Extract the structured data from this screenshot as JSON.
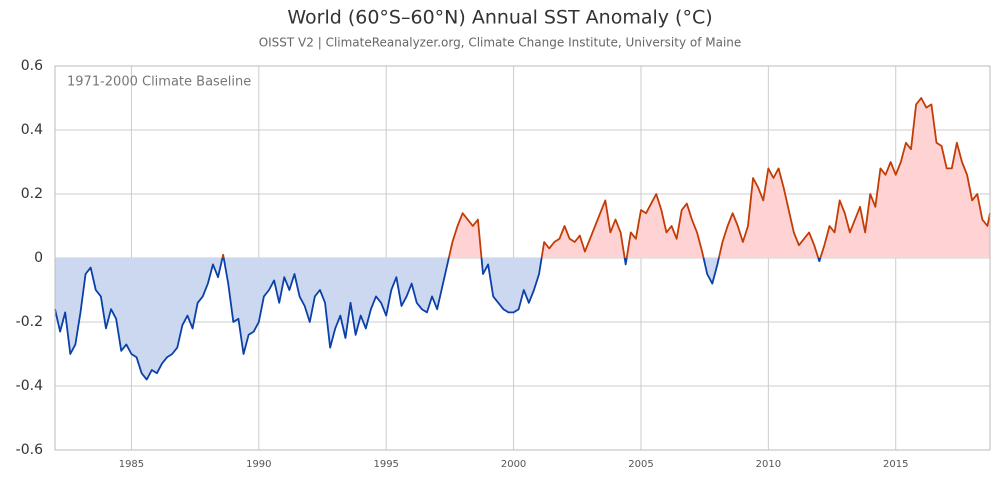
{
  "chart_data": {
    "type": "anomaly-line",
    "title": "World (60°S–60°N) Annual SST Anomaly (°C)",
    "subtitle": "OISST V2 | ClimateReanalyzer.org, Climate Change Institute, University of Maine",
    "annotation": "1971-2000 Climate Baseline",
    "x": [
      1982,
      1982.2,
      1982.4,
      1982.6,
      1982.8,
      1983,
      1983.2,
      1983.4,
      1983.6,
      1983.8,
      1984,
      1984.2,
      1984.4,
      1984.6,
      1984.8,
      1985,
      1985.2,
      1985.4,
      1985.6,
      1985.8,
      1986,
      1986.2,
      1986.4,
      1986.6,
      1986.8,
      1987,
      1987.2,
      1987.4,
      1987.6,
      1987.8,
      1988,
      1988.2,
      1988.4,
      1988.6,
      1988.8,
      1989,
      1989.2,
      1989.4,
      1989.6,
      1989.8,
      1990,
      1990.2,
      1990.4,
      1990.6,
      1990.8,
      1991,
      1991.2,
      1991.4,
      1991.6,
      1991.8,
      1992,
      1992.2,
      1992.4,
      1992.6,
      1992.8,
      1993,
      1993.2,
      1993.4,
      1993.6,
      1993.8,
      1994,
      1994.2,
      1994.4,
      1994.6,
      1994.8,
      1995,
      1995.2,
      1995.4,
      1995.6,
      1995.8,
      1996,
      1996.2,
      1996.4,
      1996.6,
      1996.8,
      1997,
      1997.2,
      1997.4,
      1997.6,
      1997.8,
      1998,
      1998.2,
      1998.4,
      1998.6,
      1998.8,
      1999,
      1999.2,
      1999.4,
      1999.6,
      1999.8,
      2000,
      2000.2,
      2000.4,
      2000.6,
      2000.8,
      2001,
      2001.2,
      2001.4,
      2001.6,
      2001.8,
      2002,
      2002.2,
      2002.4,
      2002.6,
      2002.8,
      2003,
      2003.2,
      2003.4,
      2003.6,
      2003.8,
      2004,
      2004.2,
      2004.4,
      2004.6,
      2004.8,
      2005,
      2005.2,
      2005.4,
      2005.6,
      2005.8,
      2006,
      2006.2,
      2006.4,
      2006.6,
      2006.8,
      2007,
      2007.2,
      2007.4,
      2007.6,
      2007.8,
      2008,
      2008.2,
      2008.4,
      2008.6,
      2008.8,
      2009,
      2009.2,
      2009.4,
      2009.6,
      2009.8,
      2010,
      2010.2,
      2010.4,
      2010.6,
      2010.8,
      2011,
      2011.2,
      2011.4,
      2011.6,
      2011.8,
      2012,
      2012.2,
      2012.4,
      2012.6,
      2012.8,
      2013,
      2013.2,
      2013.4,
      2013.6,
      2013.8,
      2014,
      2014.2,
      2014.4,
      2014.6,
      2014.8,
      2015,
      2015.2,
      2015.4,
      2015.6,
      2015.8,
      2016,
      2016.2,
      2016.4,
      2016.6,
      2016.8,
      2017,
      2017.2,
      2017.4,
      2017.6,
      2017.8,
      2018,
      2018.2,
      2018.4,
      2018.6,
      2018.7
    ],
    "values": [
      -0.16,
      -0.23,
      -0.17,
      -0.3,
      -0.27,
      -0.17,
      -0.05,
      -0.03,
      -0.1,
      -0.12,
      -0.22,
      -0.16,
      -0.19,
      -0.29,
      -0.27,
      -0.3,
      -0.31,
      -0.36,
      -0.38,
      -0.35,
      -0.36,
      -0.33,
      -0.31,
      -0.3,
      -0.28,
      -0.21,
      -0.18,
      -0.22,
      -0.14,
      -0.12,
      -0.08,
      -0.02,
      -0.06,
      0.01,
      -0.08,
      -0.2,
      -0.19,
      -0.3,
      -0.24,
      -0.23,
      -0.2,
      -0.12,
      -0.1,
      -0.07,
      -0.14,
      -0.06,
      -0.1,
      -0.05,
      -0.12,
      -0.15,
      -0.2,
      -0.12,
      -0.1,
      -0.14,
      -0.28,
      -0.22,
      -0.18,
      -0.25,
      -0.14,
      -0.24,
      -0.18,
      -0.22,
      -0.16,
      -0.12,
      -0.14,
      -0.18,
      -0.1,
      -0.06,
      -0.15,
      -0.12,
      -0.08,
      -0.14,
      -0.16,
      -0.17,
      -0.12,
      -0.16,
      -0.09,
      -0.02,
      0.05,
      0.1,
      0.14,
      0.12,
      0.1,
      0.12,
      -0.05,
      -0.02,
      -0.12,
      -0.14,
      -0.16,
      -0.17,
      -0.17,
      -0.16,
      -0.1,
      -0.14,
      -0.1,
      -0.05,
      0.05,
      0.03,
      0.05,
      0.06,
      0.1,
      0.06,
      0.05,
      0.07,
      0.02,
      0.06,
      0.1,
      0.14,
      0.18,
      0.08,
      0.12,
      0.08,
      -0.02,
      0.08,
      0.06,
      0.15,
      0.14,
      0.17,
      0.2,
      0.15,
      0.08,
      0.1,
      0.06,
      0.15,
      0.17,
      0.12,
      0.08,
      0.02,
      -0.05,
      -0.08,
      -0.02,
      0.05,
      0.1,
      0.14,
      0.1,
      0.05,
      0.1,
      0.25,
      0.22,
      0.18,
      0.28,
      0.25,
      0.28,
      0.22,
      0.15,
      0.08,
      0.04,
      0.06,
      0.08,
      0.04,
      -0.01,
      0.04,
      0.1,
      0.08,
      0.18,
      0.14,
      0.08,
      0.12,
      0.16,
      0.08,
      0.2,
      0.16,
      0.28,
      0.26,
      0.3,
      0.26,
      0.3,
      0.36,
      0.34,
      0.48,
      0.5,
      0.47,
      0.48,
      0.36,
      0.35,
      0.28,
      0.28,
      0.36,
      0.3,
      0.26,
      0.18,
      0.2,
      0.12,
      0.1,
      0.14
    ],
    "line_color_above": "#c43c05",
    "line_color_below": "#0b40a8",
    "fill_color_above": "#ffd3d3",
    "fill_color_below": "#ccd8f0",
    "xlim": [
      1982,
      2018.7
    ],
    "xticks": [
      1985,
      1990,
      1995,
      2000,
      2005,
      2010,
      2015
    ],
    "ylim": [
      -0.6,
      0.6
    ],
    "yticks": [
      -0.6,
      -0.4,
      -0.2,
      0,
      0.2,
      0.4,
      0.6
    ],
    "grid": true
  }
}
